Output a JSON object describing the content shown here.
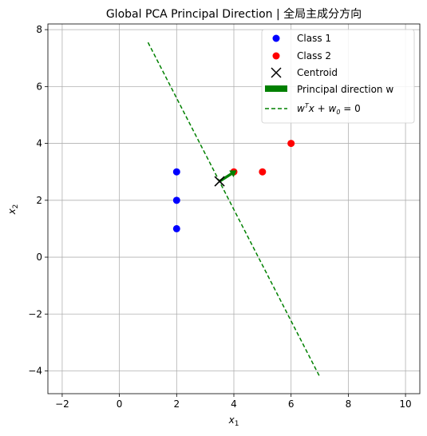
{
  "chart_data": {
    "type": "scatter",
    "title": "Global PCA Principal Direction | 全局主成分方向",
    "xlabel_main": "x",
    "xlabel_sub": "1",
    "ylabel_main": "x",
    "ylabel_sub": "2",
    "xlim": [
      -2.5,
      10.5
    ],
    "ylim": [
      -4.8,
      8.2
    ],
    "xticks": [
      -2,
      0,
      2,
      4,
      6,
      8,
      10
    ],
    "yticks": [
      -4,
      -2,
      0,
      2,
      4,
      6,
      8
    ],
    "grid": true,
    "legend_position": "top-right",
    "series": [
      {
        "name": "Class 1",
        "color": "#0000ff",
        "marker": "circle",
        "x": [
          2,
          2,
          2
        ],
        "y": [
          1,
          2,
          3
        ]
      },
      {
        "name": "Class 2",
        "color": "#ff0000",
        "marker": "circle",
        "x": [
          4,
          5,
          6
        ],
        "y": [
          3,
          3,
          4
        ]
      }
    ],
    "centroid": {
      "name": "Centroid",
      "x": 3.5,
      "y": 2.667,
      "color": "#000000",
      "marker": "x"
    },
    "principal_direction": {
      "name": "Principal direction w",
      "color": "#008000",
      "from": [
        3.5,
        2.667
      ],
      "to": [
        4.1,
        3.05
      ]
    },
    "decision_line": {
      "name_prefix": "w",
      "name_sup": "T",
      "name_mid": "x + w",
      "name_sub": "0",
      "name_suffix": " = 0",
      "color": "#008000",
      "style": "dashed",
      "points": [
        [
          1.0,
          7.55
        ],
        [
          7.0,
          -4.2
        ]
      ]
    }
  }
}
